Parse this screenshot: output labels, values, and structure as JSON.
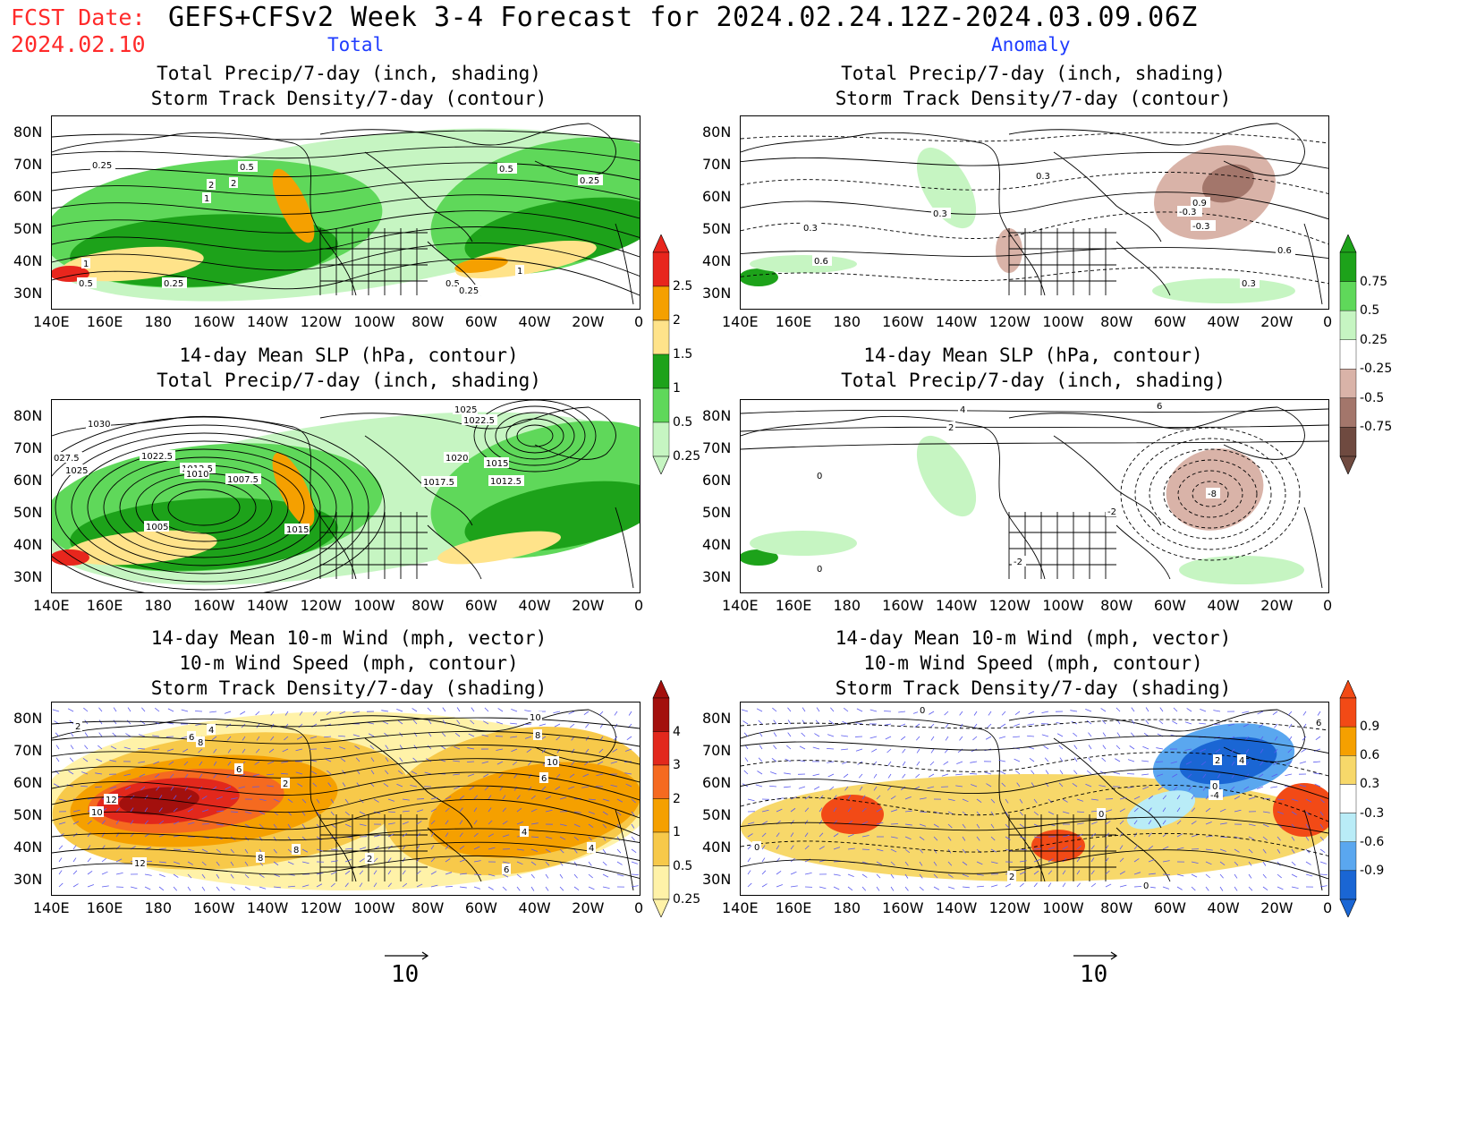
{
  "header": {
    "fcst_label": "FCST Date:",
    "fcst_date": "2024.02.10",
    "title": "GEFS+CFSv2 Week 3-4 Forecast for 2024.02.24.12Z-2024.03.09.06Z",
    "total_label": "Total",
    "anomaly_label": "Anomaly"
  },
  "axes": {
    "lat_ticks": [
      "80N",
      "70N",
      "60N",
      "50N",
      "40N",
      "30N"
    ],
    "lon_ticks": [
      "140E",
      "160E",
      "180",
      "160W",
      "140W",
      "120W",
      "100W",
      "80W",
      "60W",
      "40W",
      "20W",
      "0"
    ]
  },
  "panels": {
    "total_precip": {
      "title": "Total Precip/7-day (inch, shading)\nStorm Track Density/7-day (contour)",
      "contour_labels": [
        "0.25",
        "0.5",
        "1",
        "2",
        "1",
        "0.5",
        "0.25",
        "0.5",
        "0.25",
        "2",
        "1",
        "0.5",
        "0.25"
      ]
    },
    "anom_precip": {
      "title": "Total Precip/7-day (inch, shading)\nStorm Track Density/7-day (contour)",
      "contour_labels": [
        "0.3",
        "0.3",
        "0.6",
        "-0.3",
        "0.3",
        "-0.3",
        "0.9",
        "0.6",
        "0.3"
      ]
    },
    "total_slp": {
      "title": "14-day Mean SLP (hPa, contour)\nTotal Precip/7-day (inch, shading)",
      "contour_labels": [
        "1030",
        "027.5",
        "1025",
        "1022.5",
        "1012.5",
        "1010",
        "1007.5",
        "1005",
        "1015",
        "1025",
        "1022.5",
        "1020",
        "1017.5",
        "1015",
        "1012.5"
      ]
    },
    "anom_slp": {
      "title": "14-day Mean SLP (hPa, contour)\nTotal Precip/7-day (inch, shading)",
      "contour_labels": [
        "4",
        "2",
        "0",
        "0",
        "-2",
        "-2",
        "-8",
        "6"
      ]
    },
    "total_wind": {
      "title": "14-day Mean 10-m Wind (mph, vector)\n10-m Wind Speed (mph, contour)\nStorm Track Density/7-day (shading)",
      "contour_labels": [
        "2",
        "4",
        "6",
        "8",
        "6",
        "12",
        "10",
        "2",
        "8",
        "12",
        "8",
        "10",
        "8",
        "10",
        "6",
        "4",
        "4",
        "6",
        "2"
      ]
    },
    "anom_wind": {
      "title": "14-day Mean 10-m Wind (mph, vector)\n10-m Wind Speed (mph, contour)\nStorm Track Density/7-day (shading)",
      "contour_labels": [
        "0",
        "0",
        "2",
        "4",
        "0",
        "-4",
        "0",
        "2",
        "0",
        "6"
      ]
    }
  },
  "colorbars": {
    "precip_total": {
      "labels": [
        "2.5",
        "2",
        "1.5",
        "1",
        "0.5",
        "0.25"
      ],
      "colors": [
        "#e8261d",
        "#f5a000",
        "#ffe38a",
        "#1da21a",
        "#5fd85a",
        "#c6f5c2"
      ]
    },
    "precip_anom": {
      "labels": [
        "0.75",
        "0.5",
        "0.25",
        "-0.25",
        "-0.5",
        "-0.75"
      ],
      "colors": [
        "#1da21a",
        "#5fd85a",
        "#c6f5c2",
        "#ffffff",
        "#d9b3a8",
        "#a3766b",
        "#6f4a40"
      ]
    },
    "storm_total": {
      "labels": [
        "4",
        "3",
        "2",
        "1",
        "0.5",
        "0.25"
      ],
      "colors": [
        "#a3100d",
        "#e2281c",
        "#f56a20",
        "#f5a000",
        "#f7c94a",
        "#fff2a8"
      ]
    },
    "storm_anom": {
      "labels": [
        "0.9",
        "0.6",
        "0.3",
        "-0.3",
        "-0.6",
        "-0.9"
      ],
      "colors": [
        "#f24a16",
        "#f5a000",
        "#f7d86a",
        "#ffffff",
        "#b9ecf7",
        "#5aa7ef",
        "#1a66d4"
      ]
    }
  },
  "vector_ref": {
    "left": "10",
    "right": "10"
  }
}
